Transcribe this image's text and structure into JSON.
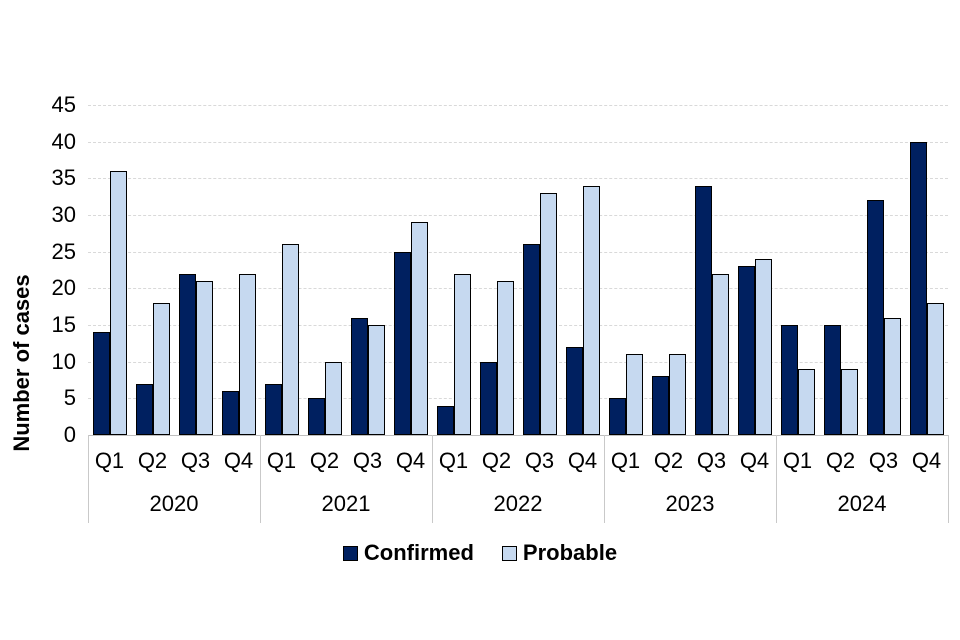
{
  "chart_data": {
    "type": "bar",
    "title": "",
    "xlabel": "",
    "ylabel": "Number of cases",
    "ylim": [
      0,
      45
    ],
    "yticks": [
      0,
      5,
      10,
      15,
      20,
      25,
      30,
      35,
      40,
      45
    ],
    "grid": true,
    "legend_position": "bottom",
    "years": [
      "2020",
      "2021",
      "2022",
      "2023",
      "2024"
    ],
    "quarters": [
      "Q1",
      "Q2",
      "Q3",
      "Q4"
    ],
    "categories": [
      "Q1 2020",
      "Q2 2020",
      "Q3 2020",
      "Q4 2020",
      "Q1 2021",
      "Q2 2021",
      "Q3 2021",
      "Q4 2021",
      "Q1 2022",
      "Q2 2022",
      "Q3 2022",
      "Q4 2022",
      "Q1 2023",
      "Q2 2023",
      "Q3 2023",
      "Q4 2023",
      "Q1 2024",
      "Q2 2024",
      "Q3 2024",
      "Q4 2024"
    ],
    "series": [
      {
        "name": "Confirmed",
        "color": "#002060",
        "border_color": "#000000",
        "values": [
          14,
          7,
          22,
          6,
          7,
          5,
          16,
          25,
          4,
          10,
          26,
          12,
          5,
          8,
          34,
          23,
          15,
          15,
          32,
          40
        ]
      },
      {
        "name": "Probable",
        "color": "#c6d9f0",
        "border_color": "#000000",
        "values": [
          36,
          18,
          21,
          22,
          26,
          10,
          15,
          29,
          22,
          21,
          33,
          34,
          11,
          11,
          22,
          24,
          9,
          9,
          16,
          18
        ]
      }
    ]
  },
  "colors": {
    "background": "#ffffff",
    "gridline": "#d9d9d9",
    "axis_line": "#bfbfbf",
    "separator": "#c9c9c9",
    "text": "#000000"
  }
}
